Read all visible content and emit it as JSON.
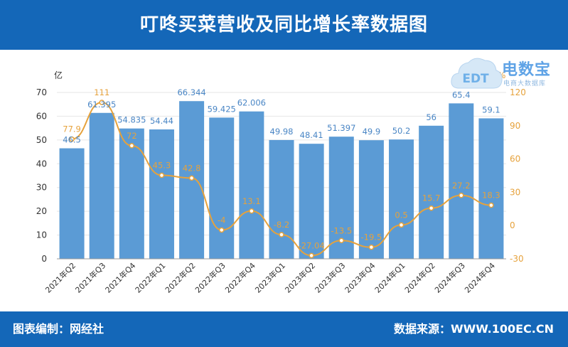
{
  "header": {
    "title": "叮咚买菜营收及同比增长率数据图"
  },
  "footer": {
    "left": "图表编制：网经社",
    "right": "数据来源：WWW.100EC.CN"
  },
  "logo": {
    "brand": "电数宝",
    "sub": "电商大数据库",
    "mark": "EDT"
  },
  "chart_data": {
    "type": "bar",
    "categories": [
      "2021年Q2",
      "2021年Q3",
      "2021年Q4",
      "2022年Q1",
      "2022年Q2",
      "2022年Q3",
      "2022年Q4",
      "2023年Q1",
      "2023年Q2",
      "2023年Q3",
      "2023年Q4",
      "2024年Q1",
      "2024年Q2",
      "2024年Q3",
      "2024年Q4"
    ],
    "left_axis": {
      "unit": "亿",
      "min": 0,
      "max": 70,
      "ticks": [
        0,
        10,
        20,
        30,
        40,
        50,
        60,
        70
      ]
    },
    "right_axis": {
      "unit": "%",
      "min": -30,
      "max": 120,
      "ticks": [
        -30,
        0,
        30,
        60,
        90,
        120
      ]
    },
    "series": [
      {
        "type": "bar",
        "axis": "left",
        "color": "#5b9bd5",
        "values": [
          46.5,
          61.395,
          54.835,
          54.44,
          66.344,
          59.425,
          62.006,
          49.98,
          48.41,
          51.397,
          49.9,
          50.2,
          56,
          65.4,
          59.1
        ],
        "labels": [
          "46.5",
          "61.395",
          "54.835",
          "54.44",
          "66.344",
          "59.425",
          "62.006",
          "49.98",
          "48.41",
          "51.397",
          "49.9",
          "50.2",
          "56",
          "65.4",
          "59.1"
        ]
      },
      {
        "type": "line",
        "axis": "right",
        "color": "#e6a23c",
        "values": [
          77.9,
          111,
          72,
          45.3,
          42.8,
          -4,
          13.1,
          -8.2,
          -27.04,
          -13.5,
          -19.5,
          0.5,
          15.7,
          27.2,
          18.3
        ],
        "labels": [
          "77.9",
          "111",
          "72",
          "45.3",
          "42.8",
          "-4",
          "13.1",
          "-8.2",
          "-27.04",
          "-13.5",
          "-19.5",
          "0.5",
          "15.7",
          "27.2",
          "18.3"
        ]
      }
    ],
    "grid": true
  }
}
